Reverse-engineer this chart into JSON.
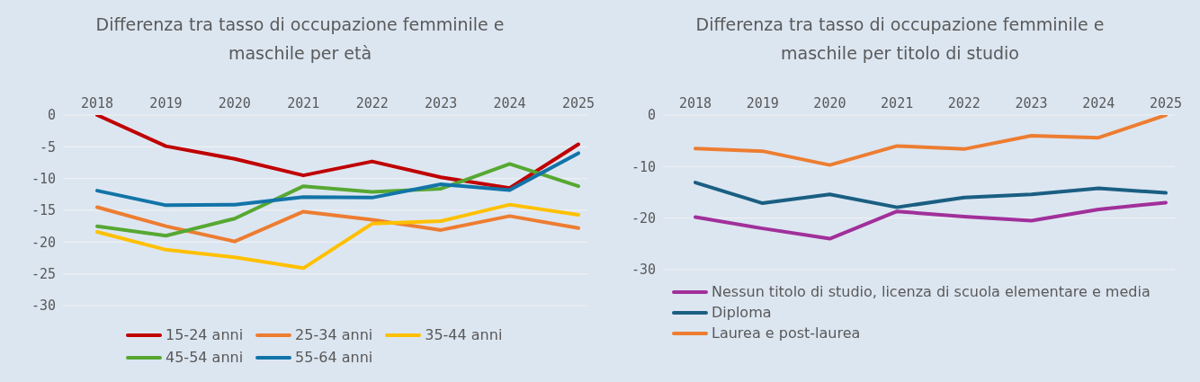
{
  "chart_data": [
    {
      "type": "line",
      "title": "Differenza tra tasso di occupazione femminile e maschile per età",
      "categories": [
        "2018",
        "2019",
        "2020",
        "2021",
        "2022",
        "2023",
        "2024",
        "2025"
      ],
      "ylim": [
        -30,
        0
      ],
      "yticks": [
        -30,
        -25,
        -20,
        -15,
        -10,
        -5,
        0
      ],
      "grid": "y",
      "legend": "bottom",
      "series": [
        {
          "name": "15-24 anni",
          "color": "#c00000",
          "values": [
            0,
            -4.9,
            -6.9,
            -9.5,
            -7.3,
            -9.8,
            -11.5,
            -4.6
          ]
        },
        {
          "name": "25-34 anni",
          "color": "#ed7d31",
          "values": [
            -14.5,
            -17.5,
            -19.9,
            -15.2,
            -16.5,
            -18.1,
            -15.9,
            -17.8
          ]
        },
        {
          "name": "35-44 anni",
          "color": "#ffc000",
          "values": [
            -18.4,
            -21.2,
            -22.4,
            -24.1,
            -17.1,
            -16.7,
            -14.1,
            -15.7
          ]
        },
        {
          "name": "45-54 anni",
          "color": "#57a832",
          "values": [
            -17.5,
            -19,
            -16.3,
            -11.2,
            -12.1,
            -11.6,
            -7.7,
            -11.2
          ]
        },
        {
          "name": "55-64 anni",
          "color": "#1274a8",
          "values": [
            -11.9,
            -14.2,
            -14.1,
            -12.9,
            -13,
            -10.9,
            -11.8,
            -6
          ]
        }
      ]
    },
    {
      "type": "line",
      "title": "Differenza tra tasso di occupazione femminile e maschile per titolo di studio",
      "categories": [
        "2018",
        "2019",
        "2020",
        "2021",
        "2022",
        "2023",
        "2024",
        "2025"
      ],
      "ylim": [
        -30,
        0
      ],
      "yticks": [
        -30,
        -20,
        -10,
        0
      ],
      "grid": "y",
      "legend": "bottom",
      "series": [
        {
          "name": "Nessun titolo di studio, licenza di scuola elementare e media",
          "color": "#a1309a",
          "values": [
            -19.8,
            -22,
            -24,
            -18.7,
            -19.7,
            -20.5,
            -18.3,
            -17
          ]
        },
        {
          "name": "Diploma",
          "color": "#1a5f82",
          "values": [
            -13.1,
            -17.1,
            -15.4,
            -17.9,
            -16,
            -15.4,
            -14.2,
            -15.1
          ]
        },
        {
          "name": "Laurea e post-laurea",
          "color": "#ed7d31",
          "values": [
            -6.5,
            -7,
            -9.7,
            -6,
            -6.6,
            -4,
            -4.4,
            0
          ]
        }
      ]
    }
  ]
}
